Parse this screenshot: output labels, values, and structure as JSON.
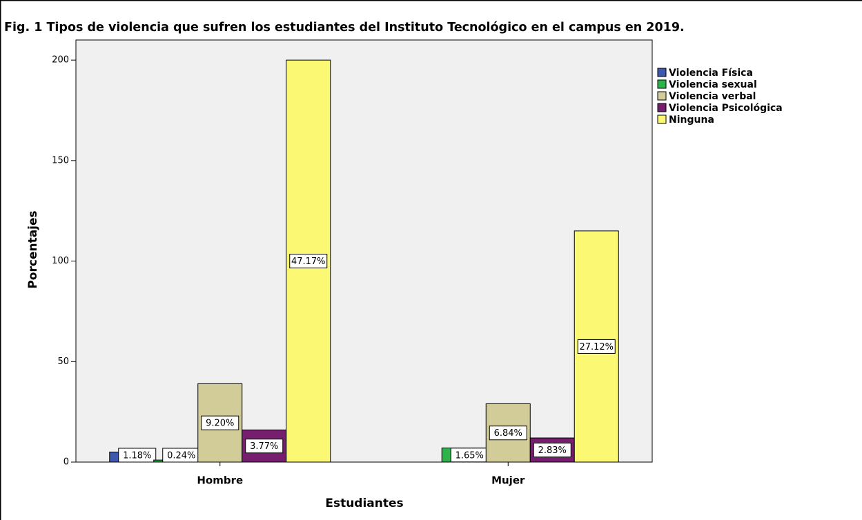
{
  "chart_data": {
    "type": "bar",
    "title": "Fig. 1 Tipos de violencia que sufren los estudiantes del Instituto Tecnológico en el campus en 2019.",
    "x_label": "Estudiantes",
    "y_label": "Porcentajes",
    "categories": [
      "Hombre",
      "Mujer"
    ],
    "series": [
      {
        "name": "Violencia  Física",
        "color": "#3e58ac",
        "values": [
          5,
          null
        ],
        "value_labels": [
          "1.18%",
          null
        ]
      },
      {
        "name": "Violencia sexual",
        "color": "#2db34a",
        "values": [
          1,
          7
        ],
        "value_labels": [
          "0.24%",
          "1.65%"
        ]
      },
      {
        "name": "Violencia verbal",
        "color": "#d2cc99",
        "values": [
          39,
          29
        ],
        "value_labels": [
          "9.20%",
          "6.84%"
        ]
      },
      {
        "name": "Violencia Psicológica",
        "color": "#771f6f",
        "values": [
          16,
          12
        ],
        "value_labels": [
          "3.77%",
          "2.83%"
        ]
      },
      {
        "name": "Ninguna",
        "color": "#fbf873",
        "values": [
          200,
          115
        ],
        "value_labels": [
          "47.17%",
          "27.12%"
        ]
      }
    ],
    "ylim": [
      0,
      210
    ],
    "yticks": [
      0,
      50,
      100,
      150,
      200
    ]
  }
}
